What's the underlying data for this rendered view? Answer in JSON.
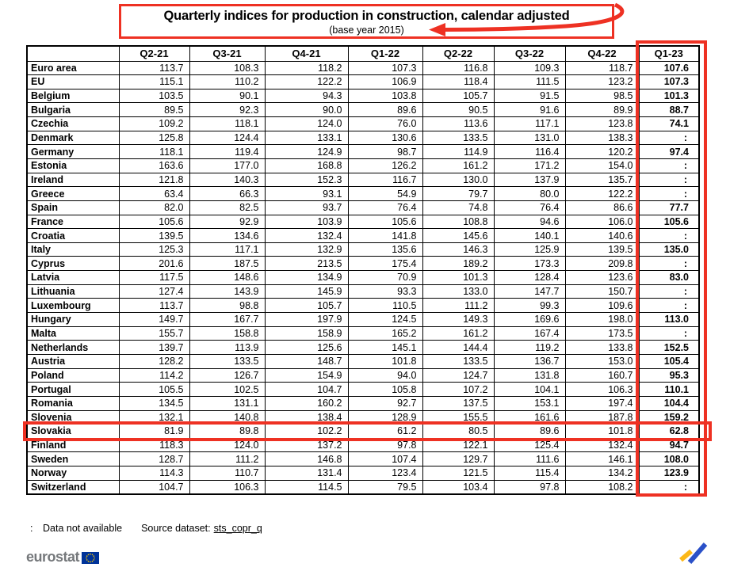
{
  "title": {
    "line1": "Quarterly indices for production in construction, calendar adjusted",
    "line2": "(base year 2015)"
  },
  "chart_data": {
    "type": "table",
    "columns": [
      "Q2-21",
      "Q3-21",
      "Q4-21",
      "Q1-22",
      "Q2-22",
      "Q3-22",
      "Q4-22",
      "Q1-23"
    ],
    "rows": [
      {
        "name": "Euro area",
        "values": [
          "113.7",
          "108.3",
          "118.2",
          "107.3",
          "116.8",
          "109.3",
          "118.7",
          "107.6"
        ]
      },
      {
        "name": "EU",
        "values": [
          "115.1",
          "110.2",
          "122.2",
          "106.9",
          "118.4",
          "111.5",
          "123.2",
          "107.3"
        ]
      },
      {
        "name": "Belgium",
        "values": [
          "103.5",
          "90.1",
          "94.3",
          "103.8",
          "105.7",
          "91.5",
          "98.5",
          "101.3"
        ]
      },
      {
        "name": "Bulgaria",
        "values": [
          "89.5",
          "92.3",
          "90.0",
          "89.6",
          "90.5",
          "91.6",
          "89.9",
          "88.7"
        ]
      },
      {
        "name": "Czechia",
        "values": [
          "109.2",
          "118.1",
          "124.0",
          "76.0",
          "113.6",
          "117.1",
          "123.8",
          "74.1"
        ]
      },
      {
        "name": "Denmark",
        "values": [
          "125.8",
          "124.4",
          "133.1",
          "130.6",
          "133.5",
          "131.0",
          "138.3",
          ":"
        ]
      },
      {
        "name": "Germany",
        "values": [
          "118.1",
          "119.4",
          "124.9",
          "98.7",
          "114.9",
          "116.4",
          "120.2",
          "97.4"
        ]
      },
      {
        "name": "Estonia",
        "values": [
          "163.6",
          "177.0",
          "168.8",
          "126.2",
          "161.2",
          "171.2",
          "154.0",
          ":"
        ]
      },
      {
        "name": "Ireland",
        "values": [
          "121.8",
          "140.3",
          "152.3",
          "116.7",
          "130.0",
          "137.9",
          "135.7",
          ":"
        ]
      },
      {
        "name": "Greece",
        "values": [
          "63.4",
          "66.3",
          "93.1",
          "54.9",
          "79.7",
          "80.0",
          "122.2",
          ":"
        ]
      },
      {
        "name": "Spain",
        "values": [
          "82.0",
          "82.5",
          "93.7",
          "76.4",
          "74.8",
          "76.4",
          "86.6",
          "77.7"
        ]
      },
      {
        "name": "France",
        "values": [
          "105.6",
          "92.9",
          "103.9",
          "105.6",
          "108.8",
          "94.6",
          "106.0",
          "105.6"
        ]
      },
      {
        "name": "Croatia",
        "values": [
          "139.5",
          "134.6",
          "132.4",
          "141.8",
          "145.6",
          "140.1",
          "140.6",
          ":"
        ]
      },
      {
        "name": "Italy",
        "values": [
          "125.3",
          "117.1",
          "132.9",
          "135.6",
          "146.3",
          "125.9",
          "139.5",
          "135.0"
        ]
      },
      {
        "name": "Cyprus",
        "values": [
          "201.6",
          "187.5",
          "213.5",
          "175.4",
          "189.2",
          "173.3",
          "209.8",
          ":"
        ]
      },
      {
        "name": "Latvia",
        "values": [
          "117.5",
          "148.6",
          "134.9",
          "70.9",
          "101.3",
          "128.4",
          "123.6",
          "83.0"
        ]
      },
      {
        "name": "Lithuania",
        "values": [
          "127.4",
          "143.9",
          "145.9",
          "93.3",
          "133.0",
          "147.7",
          "150.7",
          ":"
        ]
      },
      {
        "name": "Luxembourg",
        "values": [
          "113.7",
          "98.8",
          "105.7",
          "110.5",
          "111.2",
          "99.3",
          "109.6",
          ":"
        ]
      },
      {
        "name": "Hungary",
        "values": [
          "149.7",
          "167.7",
          "197.9",
          "124.5",
          "149.3",
          "169.6",
          "198.0",
          "113.0"
        ]
      },
      {
        "name": "Malta",
        "values": [
          "155.7",
          "158.8",
          "158.9",
          "165.2",
          "161.2",
          "167.4",
          "173.5",
          ":"
        ]
      },
      {
        "name": "Netherlands",
        "values": [
          "139.7",
          "113.9",
          "125.6",
          "145.1",
          "144.4",
          "119.2",
          "133.8",
          "152.5"
        ]
      },
      {
        "name": "Austria",
        "values": [
          "128.2",
          "133.5",
          "148.7",
          "101.8",
          "133.5",
          "136.7",
          "153.0",
          "105.4"
        ]
      },
      {
        "name": "Poland",
        "values": [
          "114.2",
          "126.7",
          "154.9",
          "94.0",
          "124.7",
          "131.8",
          "160.7",
          "95.3"
        ]
      },
      {
        "name": "Portugal",
        "values": [
          "105.5",
          "102.5",
          "104.7",
          "105.8",
          "107.2",
          "104.1",
          "106.3",
          "110.1"
        ]
      },
      {
        "name": "Romania",
        "values": [
          "134.5",
          "131.1",
          "160.2",
          "92.7",
          "137.5",
          "153.1",
          "197.4",
          "104.4"
        ]
      },
      {
        "name": "Slovenia",
        "values": [
          "132.1",
          "140.8",
          "138.4",
          "128.9",
          "155.5",
          "161.6",
          "187.8",
          "159.2"
        ]
      },
      {
        "name": "Slovakia",
        "values": [
          "81.9",
          "89.8",
          "102.2",
          "61.2",
          "80.5",
          "89.6",
          "101.8",
          "62.8"
        ]
      },
      {
        "name": "Finland",
        "values": [
          "118.3",
          "124.0",
          "137.2",
          "97.8",
          "122.1",
          "125.4",
          "132.4",
          "94.7"
        ]
      },
      {
        "name": "Sweden",
        "values": [
          "128.7",
          "111.2",
          "146.8",
          "107.4",
          "129.7",
          "111.6",
          "146.1",
          "108.0"
        ]
      },
      {
        "name": "Norway",
        "values": [
          "114.3",
          "110.7",
          "131.4",
          "123.4",
          "121.5",
          "115.4",
          "134.2",
          "123.9"
        ]
      },
      {
        "name": "Switzerland",
        "values": [
          "104.7",
          "106.3",
          "114.5",
          "79.5",
          "103.4",
          "97.8",
          "108.2",
          ":"
        ]
      }
    ],
    "missing_symbol": ":",
    "highlighted_row": "Slovakia",
    "highlighted_column": "Q1-23"
  },
  "footnote": {
    "symbol": ":",
    "text": "Data not available",
    "source_label": "Source dataset:",
    "source_link": "sts_copr_q"
  },
  "branding": {
    "logo_text": "eurostat"
  },
  "colors": {
    "highlight_red": "#ee3123",
    "logo_gray": "#75787b",
    "eu_blue": "#003399",
    "star_yellow": "#ffcc00",
    "icon_yellow": "#fcb817",
    "icon_blue": "#2a50c8"
  }
}
